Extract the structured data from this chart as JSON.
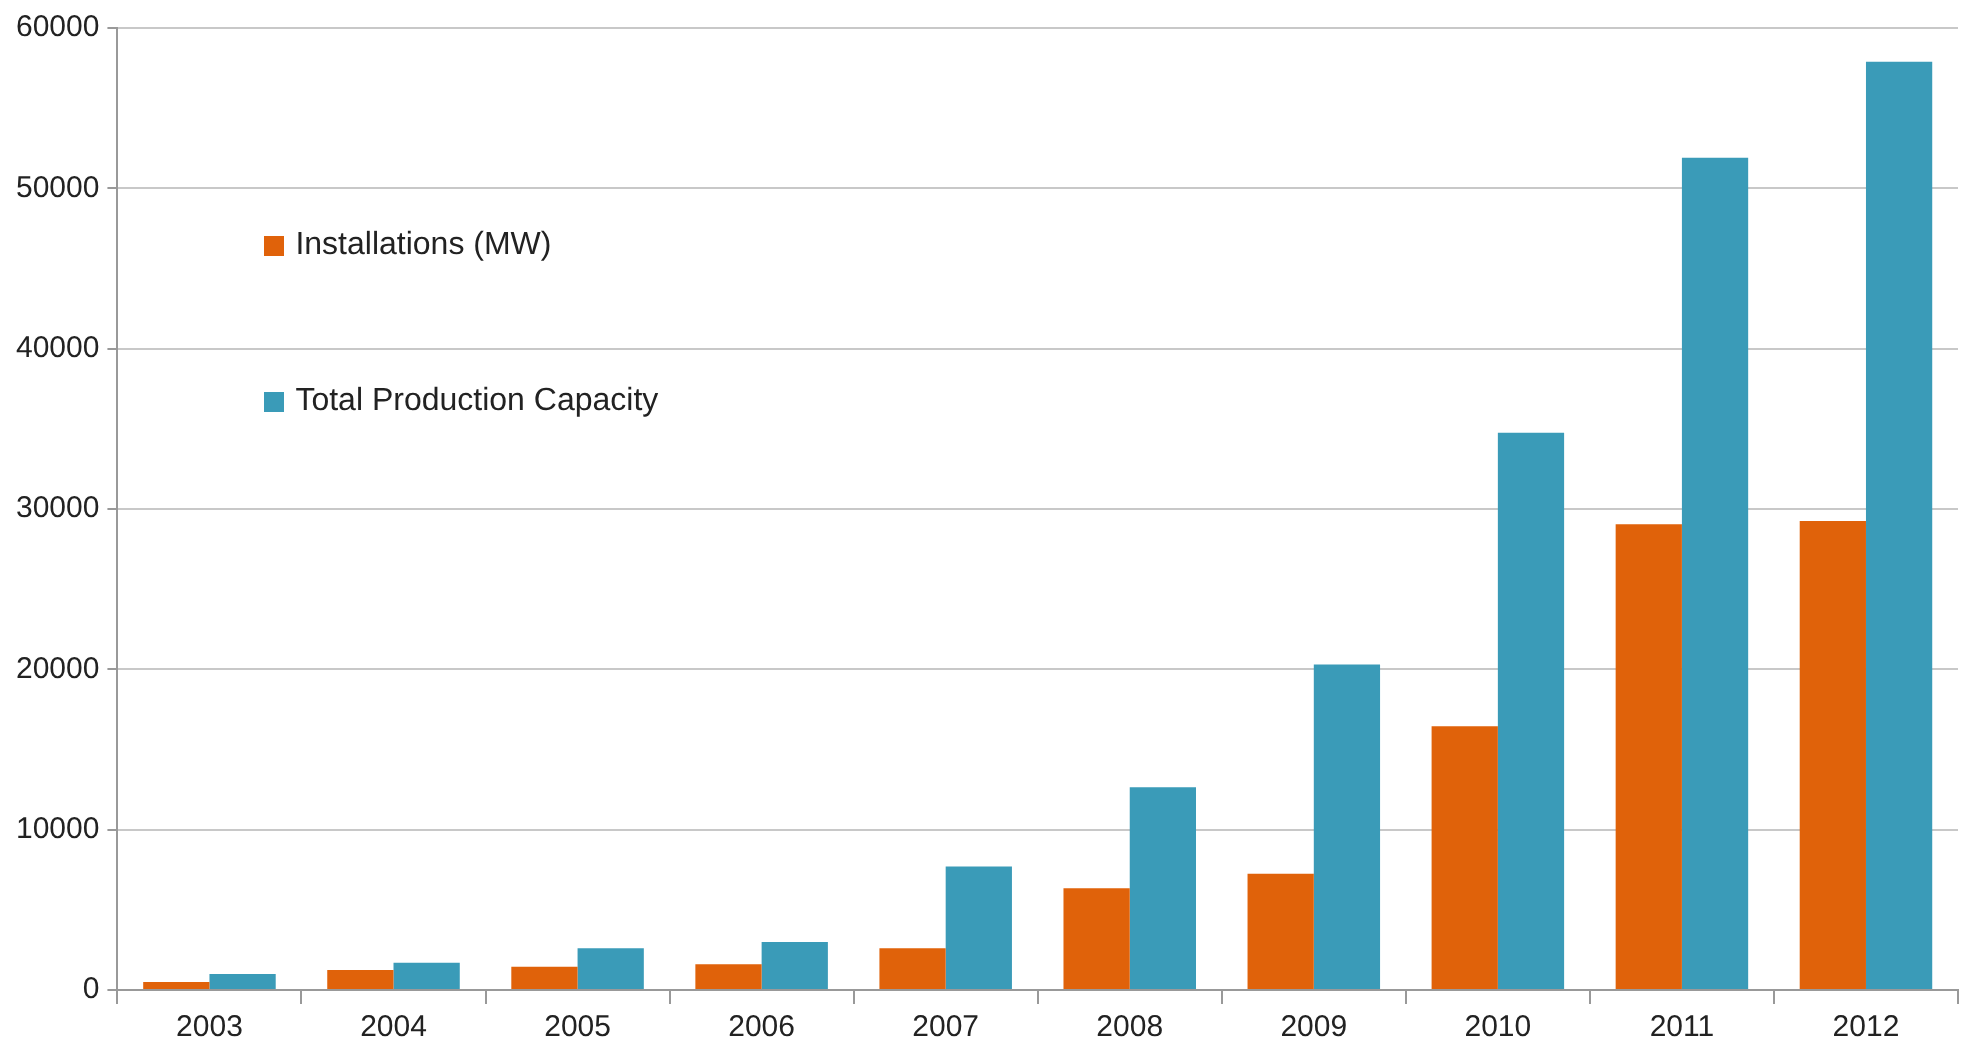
{
  "chart_data": {
    "type": "bar",
    "categories": [
      "2003",
      "2004",
      "2005",
      "2006",
      "2007",
      "2008",
      "2009",
      "2010",
      "2011",
      "2012"
    ],
    "series": [
      {
        "name": "Installations (MW)",
        "color": "#e0620a",
        "values": [
          500,
          1250,
          1450,
          1600,
          2600,
          6350,
          7250,
          16450,
          29050,
          29250
        ]
      },
      {
        "name": "Total Production Capacity",
        "color": "#3a9bb8",
        "values": [
          1000,
          1700,
          2600,
          3000,
          7700,
          12650,
          20300,
          34750,
          51900,
          57900
        ]
      }
    ],
    "ylim": [
      0,
      60000
    ],
    "yticks": [
      0,
      10000,
      20000,
      30000,
      40000,
      50000,
      60000
    ],
    "grid": "y",
    "legend": "top left"
  }
}
